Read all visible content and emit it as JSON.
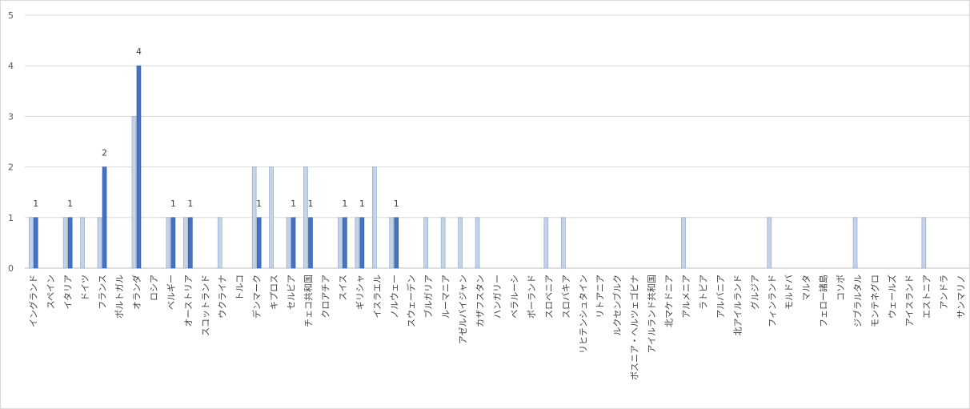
{
  "chart_data": {
    "type": "bar",
    "title": "",
    "xlabel": "",
    "ylabel": "",
    "ylim": [
      0,
      5
    ],
    "yticks": [
      0,
      1,
      2,
      3,
      4,
      5
    ],
    "grid": true,
    "legend": "none",
    "categories": [
      "イングランド",
      "スペイン",
      "イタリア",
      "ドイツ",
      "フランス",
      "ポルトガル",
      "オランダ",
      "ロシア",
      "ベルギー",
      "オーストリア",
      "スコットランド",
      "ウクライナ",
      "トルコ",
      "デンマーク",
      "キプロス",
      "セルビア",
      "チェコ共和国",
      "クロアチア",
      "スイス",
      "ギリシャ",
      "イスラエル",
      "ノルウェー",
      "スウェーデン",
      "ブルガリア",
      "ルーマニア",
      "アゼルバイジャン",
      "カザフスタン",
      "ハンガリー",
      "ベラルーシ",
      "ポーランド",
      "スロベニア",
      "スロバキア",
      "リヒテンシュタイン",
      "リトアニア",
      "ルクセンブルク",
      "ボスニア・ヘルツェゴビナ",
      "アイルランド共和国",
      "北マケドニア",
      "アルメニア",
      "ラトビア",
      "アルバニア",
      "北アイルランド",
      "グルジア",
      "フィンランド",
      "モルドバ",
      "マルタ",
      "フェロー諸島",
      "コソボ",
      "ジブラルタル",
      "モンテネグロ",
      "ウェールズ",
      "アイスランド",
      "エストニア",
      "アンドラ",
      "サンマリノ"
    ],
    "series": [
      {
        "color": "#c5d3e8",
        "stroke": "#8ea1bd",
        "values": [
          1,
          0,
          1,
          1,
          1,
          0,
          3,
          0,
          1,
          1,
          0,
          1,
          0,
          2,
          2,
          1,
          2,
          0,
          1,
          1,
          2,
          1,
          0,
          1,
          1,
          1,
          1,
          0,
          0,
          0,
          1,
          1,
          0,
          0,
          0,
          0,
          0,
          0,
          1,
          0,
          0,
          0,
          0,
          1,
          0,
          0,
          0,
          0,
          1,
          0,
          0,
          0,
          1,
          0,
          0
        ],
        "show_labels": false
      },
      {
        "color": "#4472c4",
        "stroke": "#2f5597",
        "values": [
          1,
          0,
          1,
          0,
          2,
          0,
          4,
          0,
          1,
          1,
          0,
          0,
          0,
          1,
          0,
          1,
          1,
          0,
          1,
          1,
          0,
          1,
          0,
          0,
          0,
          0,
          0,
          0,
          0,
          0,
          0,
          0,
          0,
          0,
          0,
          0,
          0,
          0,
          0,
          0,
          0,
          0,
          0,
          0,
          0,
          0,
          0,
          0,
          0,
          0,
          0,
          0,
          0,
          0,
          0
        ],
        "show_labels": true
      }
    ],
    "colors": {
      "grid": "#d9d9d9",
      "axis": "#bfbfbf"
    }
  }
}
